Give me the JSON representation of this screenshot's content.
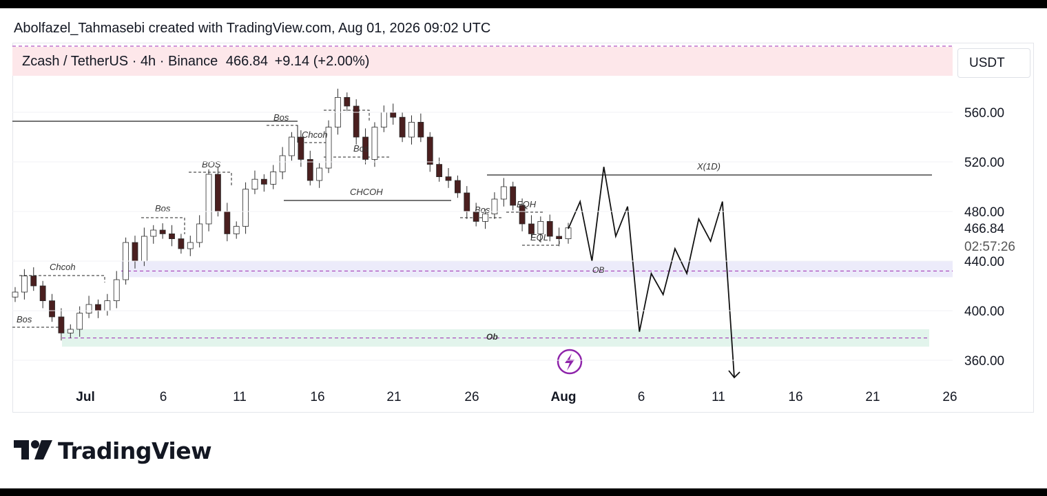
{
  "credit": "Abolfazel_Tahmasebi created with TradingView.com, Aug 01, 2026 09:02 UTC",
  "symbol": {
    "pair": "Zcash / TetherUS",
    "interval": "4h",
    "exchange": "Binance",
    "separator": "·",
    "price": "466.84",
    "change": "+9.14 (+2.00%)"
  },
  "currency_button": "USDT",
  "brand": "TradingView",
  "colors": {
    "up_candle": "#ffffff",
    "down_candle": "#4a1f1f",
    "wick": "#2a2a2a",
    "ob_upper": "#ecebfa",
    "ob_lower": "#e2f4ec",
    "symbol_bg": "#fde7ea",
    "dashed_line": "#9c27b0",
    "lightning": "#8e24aa"
  },
  "chart_data": {
    "type": "candlestick",
    "y_axis": {
      "range": [
        340,
        590
      ],
      "ticks": [
        "560.00",
        "520.00",
        "480.00",
        "440.00",
        "400.00",
        "360.00"
      ]
    },
    "price_label": "466.84",
    "countdown": "02:57:26",
    "x_axis": {
      "ticks": [
        "Jul",
        "6",
        "11",
        "16",
        "21",
        "26",
        "Aug",
        "6",
        "11",
        "16",
        "21",
        "26"
      ]
    },
    "candle_closes": [
      [
        0,
        415
      ],
      [
        1,
        428
      ],
      [
        2,
        420
      ],
      [
        3,
        408
      ],
      [
        4,
        395
      ],
      [
        5,
        382
      ],
      [
        6,
        385
      ],
      [
        7,
        398
      ],
      [
        8,
        405
      ],
      [
        9,
        400
      ],
      [
        10,
        408
      ],
      [
        11,
        425
      ],
      [
        12,
        455
      ],
      [
        13,
        440
      ],
      [
        14,
        460
      ],
      [
        15,
        465
      ],
      [
        16,
        462
      ],
      [
        17,
        458
      ],
      [
        18,
        450
      ],
      [
        19,
        455
      ],
      [
        20,
        470
      ],
      [
        21,
        510
      ],
      [
        22,
        480
      ],
      [
        23,
        462
      ],
      [
        24,
        468
      ],
      [
        25,
        498
      ],
      [
        26,
        506
      ],
      [
        27,
        502
      ],
      [
        28,
        512
      ],
      [
        29,
        525
      ],
      [
        30,
        540
      ],
      [
        31,
        522
      ],
      [
        32,
        505
      ],
      [
        33,
        515
      ],
      [
        34,
        548
      ],
      [
        35,
        572
      ],
      [
        36,
        565
      ],
      [
        37,
        540
      ],
      [
        38,
        522
      ],
      [
        39,
        548
      ],
      [
        40,
        560
      ],
      [
        41,
        556
      ],
      [
        42,
        540
      ],
      [
        43,
        552
      ],
      [
        44,
        540
      ],
      [
        45,
        518
      ],
      [
        46,
        508
      ],
      [
        47,
        505
      ],
      [
        48,
        495
      ],
      [
        49,
        480
      ],
      [
        50,
        472
      ],
      [
        51,
        478
      ],
      [
        52,
        490
      ],
      [
        53,
        500
      ],
      [
        54,
        485
      ],
      [
        55,
        470
      ],
      [
        56,
        462
      ],
      [
        57,
        472
      ],
      [
        58,
        460
      ],
      [
        59,
        458
      ],
      [
        60,
        466.84
      ]
    ],
    "zones": [
      {
        "label": "OB",
        "from": 427,
        "to": 440,
        "level": 432
      },
      {
        "label": "Ob",
        "from": 371,
        "to": 385,
        "level": 378
      }
    ],
    "levels": [
      {
        "label": "X(1D)",
        "price": 510
      },
      {
        "label": "CHCOH",
        "price": 489
      }
    ],
    "annotations": [
      "Bos",
      "Chcoh",
      "Bos",
      "BOS",
      "Chcoh",
      "Bos",
      "Bos",
      "Bos",
      "EQH",
      "EQL"
    ],
    "projection_path": [
      [
        0,
        466
      ],
      [
        1,
        488
      ],
      [
        2,
        440
      ],
      [
        3,
        516
      ],
      [
        4,
        460
      ],
      [
        5,
        484
      ],
      [
        6,
        383
      ],
      [
        7,
        430
      ],
      [
        8,
        413
      ],
      [
        9,
        450
      ],
      [
        10,
        430
      ],
      [
        11,
        474
      ],
      [
        12,
        456
      ],
      [
        13,
        488
      ],
      [
        14,
        346
      ]
    ]
  }
}
